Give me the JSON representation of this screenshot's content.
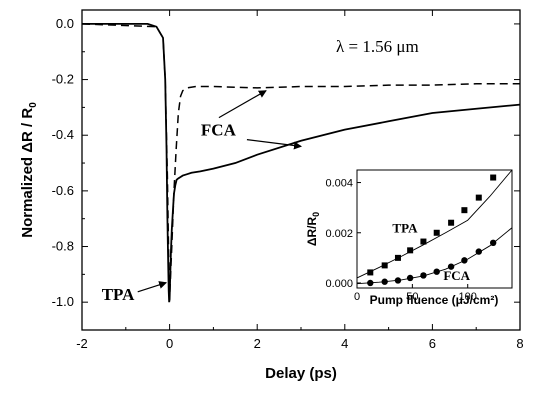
{
  "chart_data": [
    {
      "type": "line",
      "xlabel": "Delay (ps)",
      "ylabel": "Normalized  ΔR / R",
      "ylabel_sub": "0",
      "xlim": [
        -2,
        8
      ],
      "ylim": [
        -1.1,
        0.05
      ],
      "x_ticks": [
        -2,
        0,
        2,
        4,
        6,
        8
      ],
      "x_tick_labels": [
        "-2",
        "0",
        "2",
        "4",
        "6",
        "8"
      ],
      "y_ticks": [
        0,
        -0.2,
        -0.4,
        -0.6,
        -0.8,
        -1.0
      ],
      "y_tick_labels": [
        "0.0",
        "-0.2",
        "-0.4",
        "-0.6",
        "-0.8",
        "-1.0"
      ],
      "grid": false,
      "series": [
        {
          "style": "solid",
          "x": [
            -2,
            -1.5,
            -1,
            -0.5,
            -0.3,
            -0.15,
            -0.1,
            -0.07,
            -0.05,
            -0.03,
            -0.02,
            -0.01,
            0,
            0.01,
            0.03,
            0.05,
            0.08,
            0.1,
            0.13,
            0.16,
            0.2,
            0.25,
            0.3,
            0.4,
            0.5,
            0.7,
            1,
            1.5,
            2,
            3,
            4,
            5,
            6,
            7,
            8
          ],
          "y": [
            0,
            0,
            0,
            0,
            -0.01,
            -0.05,
            -0.2,
            -0.45,
            -0.7,
            -0.88,
            -0.96,
            -1.0,
            -0.99,
            -0.93,
            -0.82,
            -0.74,
            -0.66,
            -0.61,
            -0.58,
            -0.56,
            -0.555,
            -0.55,
            -0.545,
            -0.54,
            -0.535,
            -0.53,
            -0.52,
            -0.5,
            -0.47,
            -0.42,
            -0.38,
            -0.35,
            -0.32,
            -0.305,
            -0.29
          ]
        },
        {
          "style": "dashed",
          "x": [
            -2,
            -0.3,
            -0.15,
            -0.1,
            -0.05,
            -0.02,
            -0.01,
            0,
            0.01,
            0.05,
            0.1,
            0.15,
            0.2,
            0.25,
            0.3,
            0.4,
            0.6,
            1,
            2,
            3,
            4,
            5,
            6,
            7,
            8
          ],
          "y": [
            0,
            -0.01,
            -0.05,
            -0.2,
            -0.55,
            -0.85,
            -0.95,
            -0.98,
            -0.95,
            -0.8,
            -0.6,
            -0.45,
            -0.32,
            -0.26,
            -0.24,
            -0.23,
            -0.225,
            -0.225,
            -0.23,
            -0.225,
            -0.225,
            -0.22,
            -0.22,
            -0.215,
            -0.215
          ]
        }
      ],
      "annotations": [
        {
          "text": "λ = 1.56 μm",
          "x": 3.8,
          "y": -0.08
        },
        {
          "text": "FCA",
          "x": 1.4,
          "y": -0.38
        },
        {
          "text": "TPA",
          "x": -1.55,
          "y": -0.97
        }
      ]
    },
    {
      "type": "scatter",
      "inset": true,
      "xlabel": "Pump fluence (μJ/cm²)",
      "ylabel": "ΔR/R",
      "ylabel_sub": "0",
      "xlim": [
        0,
        140
      ],
      "ylim": [
        -0.0002,
        0.0045
      ],
      "x_ticks": [
        0,
        50,
        100
      ],
      "x_tick_labels": [
        "0",
        "50",
        "100"
      ],
      "y_ticks": [
        0,
        0.002,
        0.004
      ],
      "y_tick_labels": [
        "0.000",
        "0.002",
        "0.004"
      ],
      "series": [
        {
          "name": "TPA",
          "marker": "square",
          "x": [
            12,
            25,
            37,
            48,
            60,
            72,
            85,
            97,
            110,
            123
          ],
          "y": [
            0.00042,
            0.0007,
            0.001,
            0.0013,
            0.00165,
            0.002,
            0.0024,
            0.0029,
            0.0034,
            0.0042
          ]
        },
        {
          "name": "FCA",
          "marker": "circle",
          "x": [
            12,
            25,
            37,
            48,
            60,
            72,
            85,
            97,
            110,
            123
          ],
          "y": [
            0.0,
            5e-05,
            0.0001,
            0.0002,
            0.0003,
            0.00045,
            0.00065,
            0.0009,
            0.00125,
            0.0016
          ]
        }
      ],
      "fits": [
        {
          "for": "TPA",
          "x": [
            0,
            20,
            40,
            60,
            80,
            100,
            120,
            140
          ],
          "y": [
            0.0002,
            0.00062,
            0.00106,
            0.00152,
            0.002,
            0.0025,
            0.00345,
            0.0045
          ]
        },
        {
          "for": "FCA",
          "x": [
            0,
            20,
            40,
            60,
            80,
            100,
            120,
            140
          ],
          "y": [
            -3e-05,
            3e-05,
            0.00012,
            0.00028,
            0.00055,
            0.00095,
            0.00148,
            0.0022
          ]
        }
      ],
      "annotations": [
        {
          "text": "TPA",
          "x": 32,
          "y": 0.0022
        },
        {
          "text": "FCA",
          "x": 78,
          "y": 0.00032
        }
      ]
    }
  ]
}
